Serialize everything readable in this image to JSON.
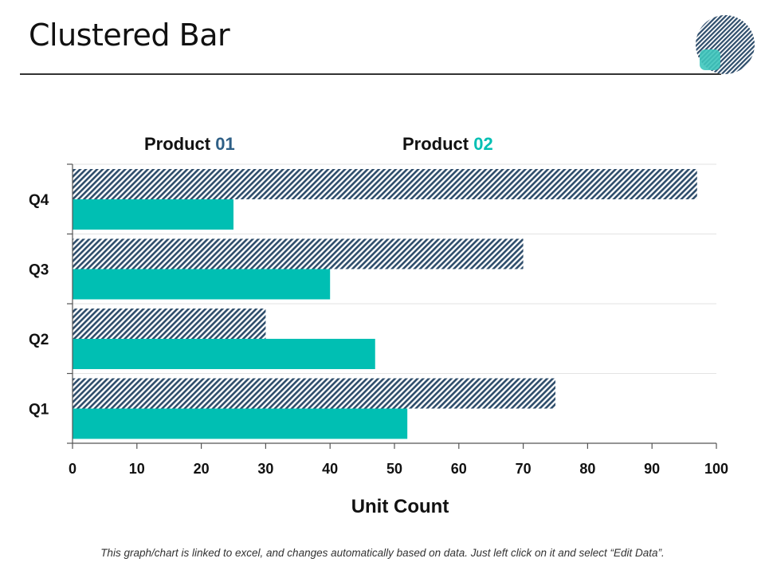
{
  "slide": {
    "title": "Clustered Bar",
    "footer": "This graph/chart is linked to excel, and changes automatically based on data. Just left click on it and select “Edit Data”."
  },
  "colors": {
    "series1": "#2e4d6b",
    "series2": "#00bfb3",
    "legend_num1": "#2e5f86",
    "legend_num2": "#00bfb3",
    "grid": "#e3e3e3",
    "axis": "#555555"
  },
  "chart_data": {
    "type": "bar",
    "orientation": "horizontal",
    "categories": [
      "Q1",
      "Q2",
      "Q3",
      "Q4"
    ],
    "series": [
      {
        "name": "Product 01",
        "name_prefix": "Product",
        "name_number": "01",
        "values": [
          75,
          30,
          70,
          97
        ],
        "pattern": "diagonal-hatch"
      },
      {
        "name": "Product 02",
        "name_prefix": "Product",
        "name_number": "02",
        "values": [
          52,
          47,
          40,
          25
        ],
        "pattern": "solid"
      }
    ],
    "title": "",
    "xlabel": "Unit Count",
    "ylabel": "",
    "xlim": [
      0,
      100
    ],
    "xticks": [
      0,
      10,
      20,
      30,
      40,
      50,
      60,
      70,
      80,
      90,
      100
    ],
    "legend_position": "top",
    "grid": true
  }
}
